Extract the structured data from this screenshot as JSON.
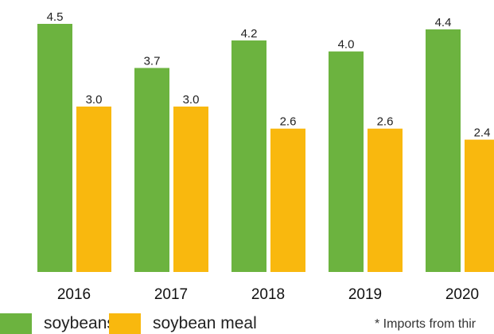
{
  "chart_data": {
    "type": "bar",
    "categories": [
      "2016",
      "2017",
      "2018",
      "2019",
      "2020"
    ],
    "series": [
      {
        "name": "soybeans",
        "values": [
          4.5,
          3.7,
          4.2,
          4.0,
          4.4
        ],
        "color": "#6cb33f"
      },
      {
        "name": "soybean meal",
        "values": [
          3.0,
          3.0,
          2.6,
          2.6,
          2.4
        ],
        "color": "#f9b80e"
      }
    ],
    "value_labels": [
      [
        "4.5",
        "3.7",
        "4.2",
        "4.0",
        "4.4"
      ],
      [
        "3.0",
        "3.0",
        "2.6",
        "2.6",
        "2.4"
      ]
    ],
    "ylim": [
      0,
      4.5
    ],
    "grid": false,
    "legend_position": "bottom-left",
    "footnote": "* Imports from thir"
  }
}
